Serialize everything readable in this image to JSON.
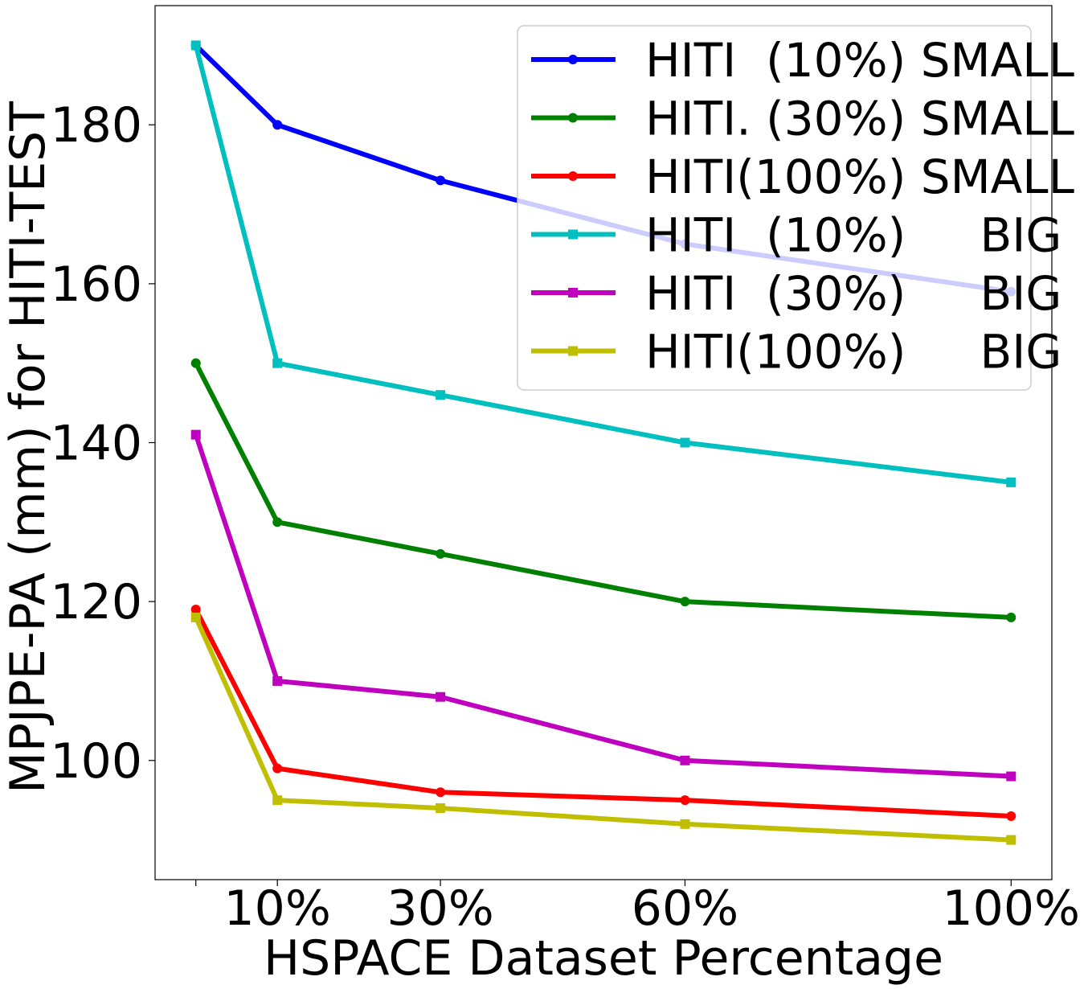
{
  "chart_data": {
    "type": "line",
    "xlabel": "HSPACE Dataset Percentage",
    "ylabel": "MPJPE-PA (mm) for HITI-TEST",
    "x": [
      0,
      10,
      30,
      60,
      100
    ],
    "x_tick_values": [
      0,
      10,
      30,
      60,
      100
    ],
    "x_tick_labels": [
      "",
      "10%",
      "30%",
      "60%",
      "100%"
    ],
    "y_ticks": [
      100,
      120,
      140,
      160,
      180
    ],
    "ylim": [
      85,
      195
    ],
    "xlim": [
      -5,
      105
    ],
    "grid": false,
    "legend_placement": "top-right",
    "series": [
      {
        "name": "HITI  (10%) SMALL",
        "color": "#0000ff",
        "marker": "circle",
        "values": [
          190,
          180,
          173,
          165,
          159
        ]
      },
      {
        "name": "HITI. (30%) SMALL",
        "color": "#008000",
        "marker": "circle",
        "values": [
          150,
          130,
          126,
          120,
          118
        ]
      },
      {
        "name": "HITI(100%) SMALL",
        "color": "#ff0000",
        "marker": "circle",
        "values": [
          119,
          99,
          96,
          95,
          93
        ]
      },
      {
        "name": "HITI  (10%)     BIG",
        "color": "#00bfbf",
        "marker": "square",
        "values": [
          190,
          150,
          146,
          140,
          135
        ]
      },
      {
        "name": "HITI  (30%)     BIG",
        "color": "#bf00bf",
        "marker": "square",
        "values": [
          141,
          110,
          108,
          100,
          98
        ]
      },
      {
        "name": "HITI(100%)     BIG",
        "color": "#bfbf00",
        "marker": "square",
        "values": [
          118,
          95,
          94,
          92,
          90
        ]
      }
    ]
  }
}
